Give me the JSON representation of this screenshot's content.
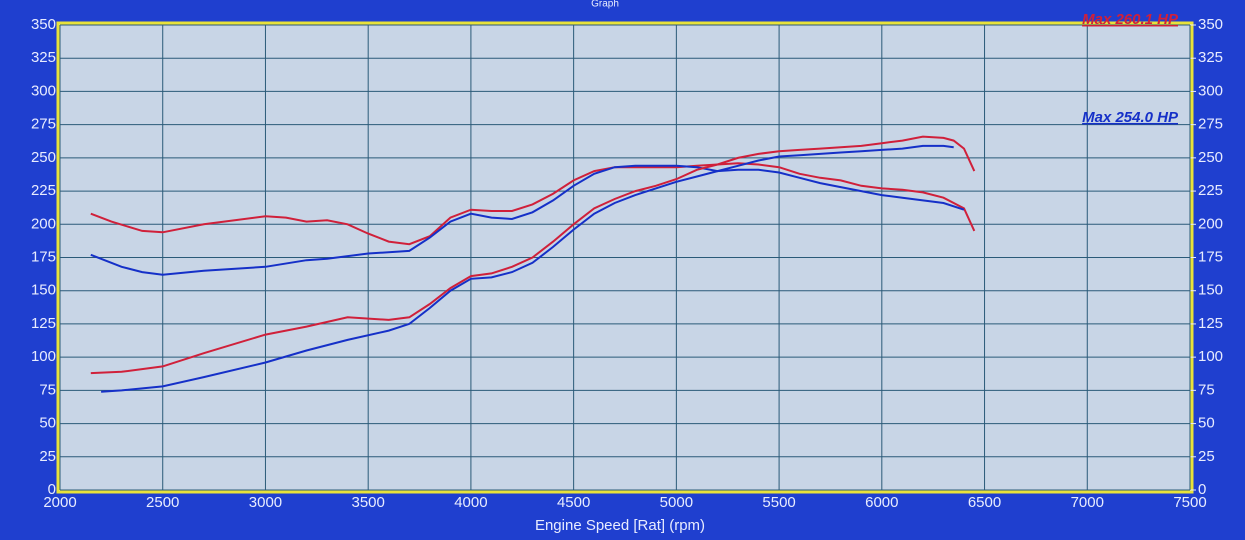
{
  "chart_data": {
    "type": "line",
    "title": "Graph",
    "x_label": "Engine Speed [Rat] (rpm)",
    "xlim": [
      2000,
      7500
    ],
    "xticks": [
      2000,
      2500,
      3000,
      3500,
      4000,
      4500,
      5000,
      5500,
      6000,
      6500,
      7000,
      7500
    ],
    "ylim": [
      0,
      350
    ],
    "yticks": [
      0,
      25,
      50,
      75,
      100,
      125,
      150,
      175,
      200,
      225,
      250,
      275,
      300,
      325,
      350
    ],
    "y2lim": [
      0,
      350
    ],
    "y2ticks": [
      0,
      25,
      50,
      75,
      100,
      125,
      150,
      175,
      200,
      225,
      250,
      275,
      300,
      325,
      350
    ],
    "grid": true,
    "annotations": [
      {
        "text": "Max 260.1 HP",
        "color": "#d0203a"
      },
      {
        "text": "Max 254.0 HP",
        "color": "#1530c8"
      }
    ],
    "series": [
      {
        "color": "#d0203a",
        "x": [
          2150,
          2250,
          2400,
          2500,
          2700,
          3000,
          3100,
          3200,
          3300,
          3400,
          3500,
          3600,
          3700,
          3800,
          3900,
          4000,
          4100,
          4200,
          4300,
          4400,
          4500,
          4600,
          4700,
          4800,
          4900,
          5000,
          5100,
          5200,
          5300,
          5400,
          5500,
          5600,
          5700,
          5800,
          5900,
          6000,
          6100,
          6200,
          6300,
          6400,
          6450
        ],
        "values": [
          208,
          202,
          195,
          194,
          200,
          206,
          205,
          202,
          203,
          200,
          193,
          187,
          185,
          191,
          205,
          211,
          210,
          210,
          215,
          223,
          233,
          240,
          243,
          243,
          243,
          243,
          244,
          245,
          246,
          245,
          243,
          238,
          235,
          233,
          229,
          227,
          226,
          224,
          220,
          212,
          195
        ]
      },
      {
        "color": "#1530c8",
        "x": [
          2150,
          2300,
          2400,
          2500,
          2700,
          3000,
          3200,
          3300,
          3500,
          3700,
          3800,
          3900,
          4000,
          4100,
          4200,
          4300,
          4400,
          4500,
          4600,
          4700,
          4800,
          4900,
          5000,
          5100,
          5200,
          5300,
          5400,
          5500,
          5600,
          5700,
          5800,
          5900,
          6000,
          6100,
          6200,
          6300,
          6400
        ],
        "values": [
          177,
          168,
          164,
          162,
          165,
          168,
          173,
          174,
          178,
          180,
          190,
          202,
          208,
          205,
          204,
          209,
          218,
          229,
          238,
          243,
          244,
          244,
          244,
          243,
          240,
          241,
          241,
          239,
          235,
          231,
          228,
          225,
          222,
          220,
          218,
          216,
          211
        ]
      },
      {
        "color": "#d0203a",
        "x": [
          2150,
          2300,
          2500,
          2700,
          3000,
          3200,
          3400,
          3600,
          3700,
          3800,
          3900,
          4000,
          4100,
          4200,
          4300,
          4400,
          4500,
          4600,
          4700,
          4800,
          4900,
          5000,
          5100,
          5200,
          5300,
          5400,
          5500,
          5600,
          5700,
          5800,
          5900,
          6000,
          6100,
          6200,
          6300,
          6350,
          6400,
          6450
        ],
        "values": [
          88,
          89,
          93,
          103,
          117,
          123,
          130,
          128,
          130,
          140,
          152,
          161,
          163,
          168,
          175,
          187,
          200,
          212,
          219,
          225,
          229,
          234,
          241,
          245,
          250,
          253,
          255,
          256,
          257,
          258,
          259,
          261,
          263,
          266,
          265,
          263,
          257,
          240
        ]
      },
      {
        "color": "#1530c8",
        "x": [
          2200,
          2300,
          2500,
          2700,
          3000,
          3200,
          3400,
          3600,
          3700,
          3800,
          3900,
          4000,
          4100,
          4200,
          4300,
          4400,
          4500,
          4600,
          4700,
          4800,
          4900,
          5000,
          5100,
          5200,
          5300,
          5400,
          5500,
          5600,
          5700,
          5800,
          5900,
          6000,
          6100,
          6200,
          6300,
          6350
        ],
        "values": [
          74,
          75,
          78,
          85,
          96,
          105,
          113,
          120,
          125,
          137,
          150,
          159,
          160,
          164,
          171,
          183,
          196,
          208,
          216,
          222,
          227,
          232,
          236,
          240,
          244,
          248,
          251,
          252,
          253,
          254,
          255,
          256,
          257,
          259,
          259,
          258
        ]
      }
    ]
  }
}
